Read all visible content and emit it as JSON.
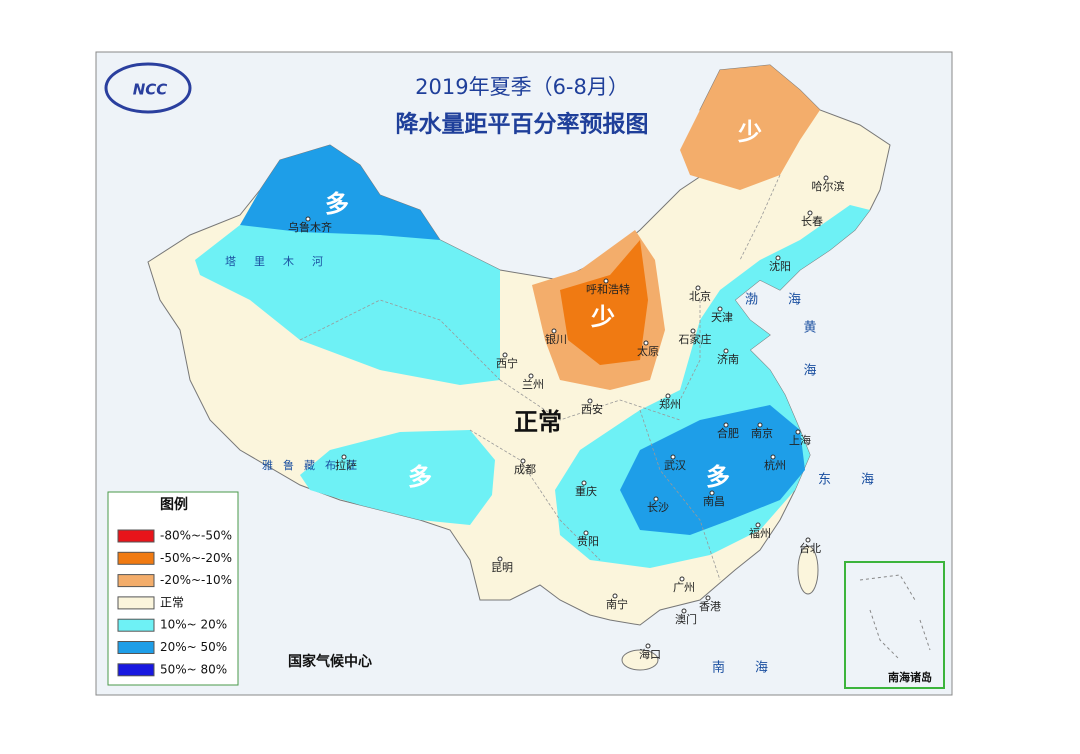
{
  "header": {
    "title": "2019年夏季（6-8月）",
    "subtitle": "降水量距平百分率预报图"
  },
  "logo": "NCC",
  "regions": [
    "多",
    "少",
    "少",
    "正常",
    "多",
    "多"
  ],
  "cities": [
    "乌鲁木齐",
    "呼和浩特",
    "哈尔滨",
    "长春",
    "沈阳",
    "北京",
    "天津",
    "石家庄",
    "太原",
    "济南",
    "银川",
    "西宁",
    "兰州",
    "西安",
    "郑州",
    "合肥",
    "南京",
    "上海",
    "杭州",
    "武汉",
    "南昌",
    "长沙",
    "福州",
    "成都",
    "重庆",
    "贵阳",
    "拉萨",
    "昆明",
    "南宁",
    "广州",
    "香港",
    "澳门",
    "海口",
    "台北"
  ],
  "seas": [
    "渤海",
    "黄海",
    "东海",
    "南海"
  ],
  "rivers": [
    "塔里木河",
    "雅鲁藏布江"
  ],
  "legend": {
    "title": "图例",
    "items": [
      {
        "label": "-80%~-50%",
        "color": "#e8141a"
      },
      {
        "label": "-50%~-20%",
        "color": "#f07a12"
      },
      {
        "label": "-20%~-10%",
        "color": "#f3ad6b"
      },
      {
        "label": "正常",
        "color": "#fbf5dc"
      },
      {
        "label": "10%~ 20%",
        "color": "#6ef1f5"
      },
      {
        "label": "20%~ 50%",
        "color": "#1e9ee8"
      },
      {
        "label": "50%~ 80%",
        "color": "#1818e0"
      }
    ]
  },
  "source": "国家气候中心",
  "inset": "南海诸岛"
}
